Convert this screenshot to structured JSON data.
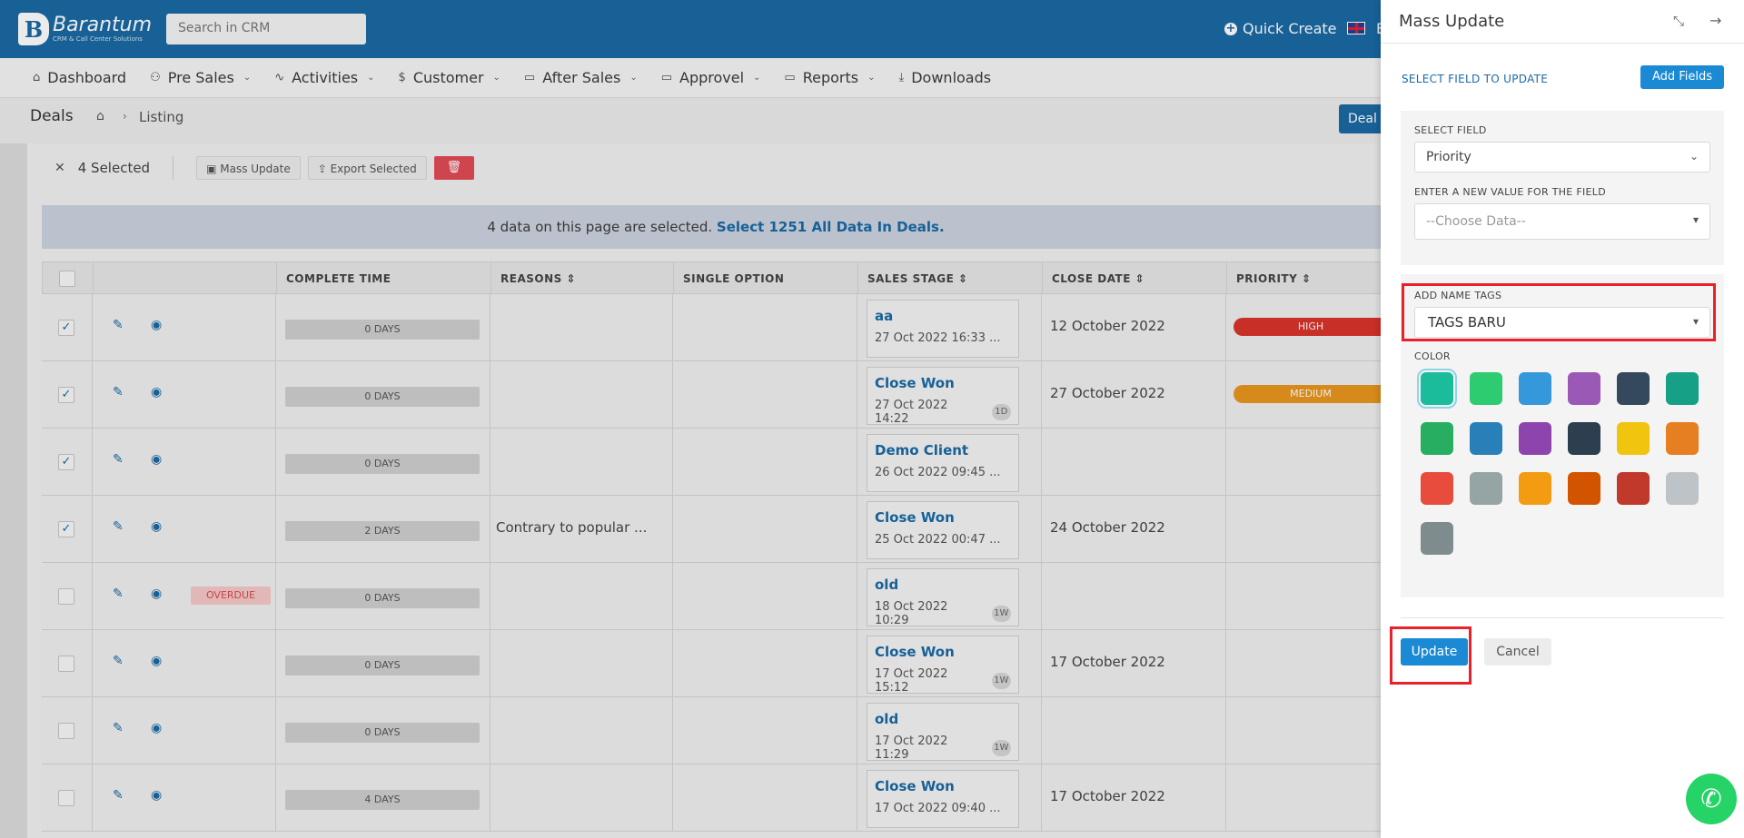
{
  "app": {
    "logo_name": "Barantum",
    "logo_sub": "CRM & Call Center Solutions",
    "search_placeholder": "Search in CRM",
    "quick_create": "Quick Create",
    "lang": "E"
  },
  "nav": [
    {
      "label": "Dashboard",
      "icon": "home-icon"
    },
    {
      "label": "Pre Sales",
      "icon": "users-icon"
    },
    {
      "label": "Activities",
      "icon": "activity-icon"
    },
    {
      "label": "Customer",
      "icon": "dollar-icon"
    },
    {
      "label": "After Sales",
      "icon": "folder-icon"
    },
    {
      "label": "Approvel",
      "icon": "folder-icon"
    },
    {
      "label": "Reports",
      "icon": "folder-icon"
    },
    {
      "label": "Downloads",
      "icon": "download-icon"
    }
  ],
  "breadcrumb": {
    "title": "Deals",
    "current": "Listing",
    "button": "Deal"
  },
  "selection": {
    "count": "4 Selected",
    "mass_update": "Mass Update",
    "export": "Export Selected"
  },
  "notice": {
    "text": "4 data on this page are selected.",
    "link": "Select 1251 All Data In Deals."
  },
  "table": {
    "headers": [
      "COMPLETE TIME",
      "REASONS",
      "SINGLE OPTION",
      "SALES STAGE",
      "CLOSE DATE",
      "PRIORITY"
    ],
    "rows": [
      {
        "checked": "✓",
        "overdue": "",
        "days": "0 DAYS",
        "reason": "",
        "stage": "aa",
        "stage_date": "27 Oct 2022 16:33 ...",
        "ago": "",
        "close": "12 October 2022",
        "priority": "HIGH",
        "prio_color": "#d9342b"
      },
      {
        "checked": "✓",
        "overdue": "",
        "days": "0 DAYS",
        "reason": "",
        "stage": "Close Won",
        "stage_date": "27 Oct 2022 14:22",
        "ago": "1D",
        "close": "27 October 2022",
        "priority": "MEDIUM",
        "prio_color": "#e8961e"
      },
      {
        "checked": "✓",
        "overdue": "",
        "days": "0 DAYS",
        "reason": "",
        "stage": "Demo Client",
        "stage_date": "26 Oct 2022 09:45 ...",
        "ago": "",
        "close": "",
        "priority": "",
        "prio_color": ""
      },
      {
        "checked": "✓",
        "overdue": "",
        "days": "2 DAYS",
        "reason": "Contrary to popular ...",
        "stage": "Close Won",
        "stage_date": "25 Oct 2022 00:47 ...",
        "ago": "",
        "close": "24 October 2022",
        "priority": "",
        "prio_color": ""
      },
      {
        "checked": "",
        "overdue": "OVERDUE",
        "days": "0 DAYS",
        "reason": "",
        "stage": "old",
        "stage_date": "18 Oct 2022 10:29",
        "ago": "1W",
        "close": "",
        "priority": "",
        "prio_color": ""
      },
      {
        "checked": "",
        "overdue": "",
        "days": "0 DAYS",
        "reason": "",
        "stage": "Close Won",
        "stage_date": "17 Oct 2022 15:12",
        "ago": "1W",
        "close": "17 October 2022",
        "priority": "",
        "prio_color": ""
      },
      {
        "checked": "",
        "overdue": "",
        "days": "0 DAYS",
        "reason": "",
        "stage": "old",
        "stage_date": "17 Oct 2022 11:29",
        "ago": "1W",
        "close": "",
        "priority": "",
        "prio_color": ""
      },
      {
        "checked": "",
        "overdue": "",
        "days": "4 DAYS",
        "reason": "",
        "stage": "Close Won",
        "stage_date": "17 Oct 2022 09:40 ...",
        "ago": "",
        "close": "17 October 2022",
        "priority": "",
        "prio_color": ""
      }
    ]
  },
  "panel": {
    "title": "Mass Update",
    "subtitle": "SELECT FIELD TO UPDATE",
    "add_fields": "Add Fields",
    "select_field_label": "SELECT FIELD",
    "select_field_value": "Priority",
    "new_value_label": "ENTER A NEW VALUE FOR THE FIELD",
    "new_value_placeholder": "--Choose Data--",
    "tags_label": "ADD NAME TAGS",
    "tags_value": "TAGS BARU",
    "color_label": "COLOR",
    "colors": [
      "#1abc9c",
      "#2ecc71",
      "#3498db",
      "#9b59b6",
      "#34495e",
      "#16a085",
      "#27ae60",
      "#2980b9",
      "#8e44ad",
      "#2c3e50",
      "#f1c40f",
      "#e67e22",
      "#e74c3c",
      "#95a5a6",
      "#f39c12",
      "#d35400",
      "#c0392b",
      "#bdc3c7",
      "#7f8c8d"
    ],
    "update": "Update",
    "cancel": "Cancel"
  }
}
